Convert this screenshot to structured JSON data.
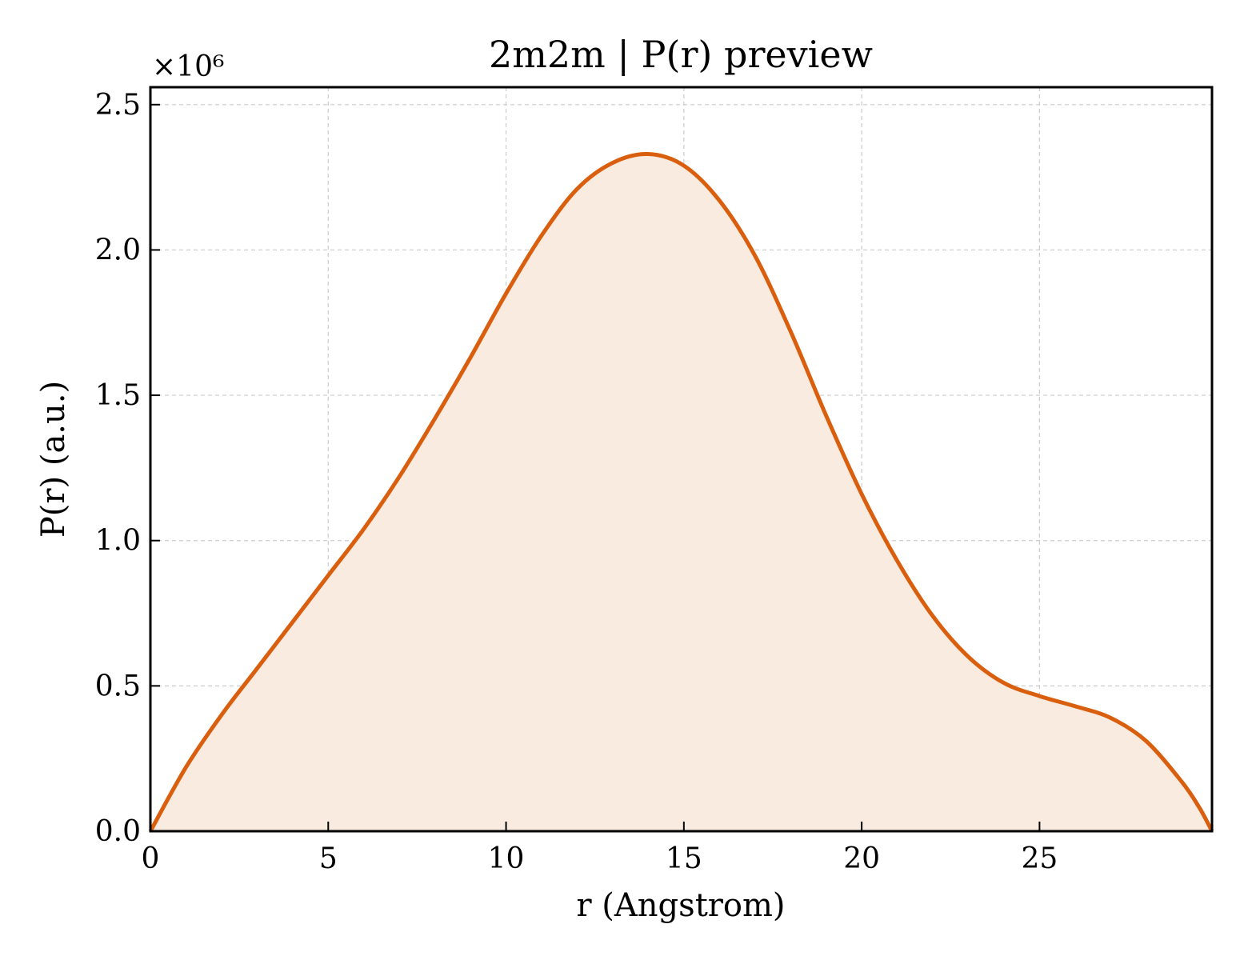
{
  "chart_data": {
    "type": "area",
    "title": "2m2m | P(r) preview",
    "xlabel": "r (Angstrom)",
    "ylabel": "P(r) (a.u.)",
    "y_multiplier_label": "×10⁶",
    "xlim": [
      0,
      29.85
    ],
    "ylim": [
      0,
      2.56
    ],
    "xticks": [
      0,
      5,
      10,
      15,
      20,
      25
    ],
    "xtick_labels": [
      "0",
      "5",
      "10",
      "15",
      "20",
      "25"
    ],
    "yticks": [
      0,
      0.5,
      1.0,
      1.5,
      2.0,
      2.5
    ],
    "ytick_labels": [
      "0.0",
      "0.5",
      "1.0",
      "1.5",
      "2.0",
      "2.5"
    ],
    "grid": true,
    "colors": {
      "line": "#d95f0e",
      "fill": "#f9ebe0"
    },
    "series": [
      {
        "x": [
          0,
          1,
          2,
          3,
          4,
          5,
          6,
          7,
          8,
          9,
          10,
          11,
          12,
          13,
          14,
          15,
          16,
          17,
          18,
          19,
          20,
          21,
          22,
          23,
          24,
          25,
          26,
          27,
          28,
          29,
          29.5,
          29.85
        ],
        "values": [
          0,
          0.22,
          0.4,
          0.56,
          0.72,
          0.88,
          1.04,
          1.22,
          1.42,
          1.63,
          1.85,
          2.05,
          2.21,
          2.3,
          2.33,
          2.29,
          2.17,
          1.98,
          1.72,
          1.43,
          1.16,
          0.93,
          0.74,
          0.6,
          0.51,
          0.465,
          0.43,
          0.39,
          0.31,
          0.17,
          0.08,
          0
        ]
      }
    ]
  }
}
